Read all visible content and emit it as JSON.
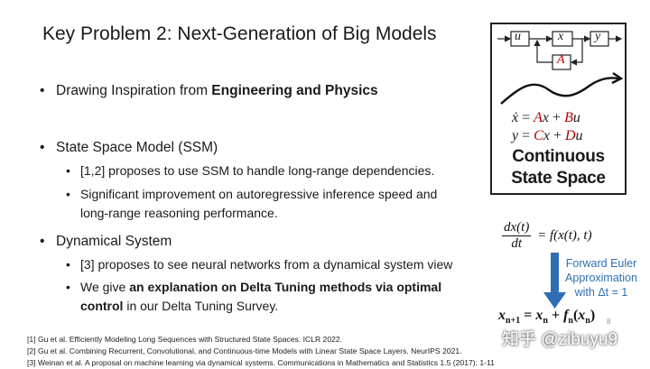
{
  "title": "Key Problem 2: Next-Generation of Big Models",
  "bullet_glyph": "•",
  "bullets": {
    "b1": {
      "prefix": "Drawing Inspiration from ",
      "bold": "Engineering and Physics"
    },
    "b2": {
      "text": "State Space Model (SSM)"
    },
    "b2_sub1": {
      "text": "[1,2] proposes to use SSM to handle long-range dependencies."
    },
    "b2_sub2": {
      "line1": "Significant improvement on autoregressive inference speed and",
      "line2": "long-range reasoning performance."
    },
    "b3": {
      "text": "Dynamical System"
    },
    "b3_sub1": {
      "text": "[3] proposes to see neural networks from a dynamical system view"
    },
    "b3_sub2": {
      "prefix": "We give ",
      "bold1": "an explanation on Delta Tuning methods via optimal",
      "bold2": "control",
      "suffix": " in our Delta Tuning Survey."
    }
  },
  "ssm_figure": {
    "block_u": "u",
    "block_x": "x",
    "block_y": "y",
    "block_A": "A",
    "eq1": {
      "lhs": "ẋ",
      "eq": " = ",
      "a": "A",
      "x1": "x",
      "plus": " + ",
      "b": "B",
      "u": "u"
    },
    "eq2": {
      "lhs": "y",
      "eq": " = ",
      "c": "C",
      "x1": "x",
      "plus": " + ",
      "d": "D",
      "u": "u"
    },
    "label_line1": "Continuous",
    "label_line2": "State Space"
  },
  "ode": {
    "num": "dx(t)",
    "den": "dt",
    "rhs": "= f(x(t), t)"
  },
  "euler": {
    "line1": "Forward Euler",
    "line2": "Approximation",
    "line3": "with Δt = 1"
  },
  "discrete": "xn+1 = xn + fn(xn)",
  "discrete_parts": {
    "x1": "x",
    "s1": "n+1",
    "eq": " = ",
    "x2": "x",
    "s2": "n",
    "plus": " + ",
    "f": "f",
    "s3": "n",
    "lp": "(",
    "x3": "x",
    "s4": "n",
    "rp": ")"
  },
  "references": {
    "r1": "[1] Gu et al. Efficiently Modeling Long Sequences with Structured State Spaces. ICLR 2022.",
    "r2": "[2] Gu et al. Combining Recurrent, Convolutional, and Continuous-time Models with Linear State Space Layers. NeurIPS 2021.",
    "r3": "[3] Weinan et al. A proposal on machine learning via dynamical systems. Communications in Mathematics and Statistics 1.5 (2017): 1-11"
  },
  "page_number": "8",
  "watermark": "知乎 @zibuyu9",
  "colors": {
    "accent_red": "#b30000",
    "euler_blue": "#2e6fb8",
    "arrow_blue": "#2f6db5"
  }
}
